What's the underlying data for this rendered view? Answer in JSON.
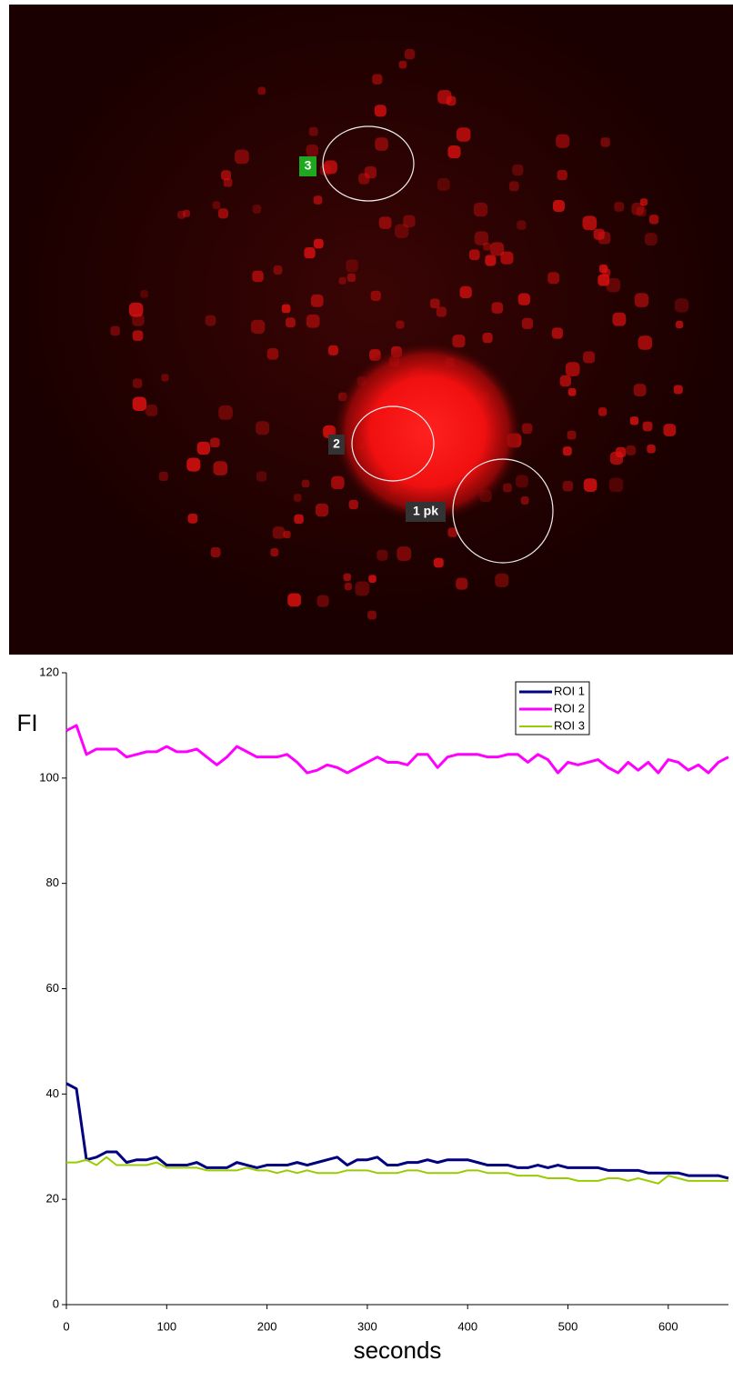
{
  "image_labels": [
    "3",
    "2",
    "1 pk"
  ],
  "chart_data": {
    "type": "line",
    "x_label": "seconds",
    "y_label": "FI",
    "x": [
      0,
      10,
      20,
      30,
      40,
      50,
      60,
      70,
      80,
      90,
      100,
      110,
      120,
      130,
      140,
      150,
      160,
      170,
      180,
      190,
      200,
      210,
      220,
      230,
      240,
      250,
      260,
      270,
      280,
      290,
      300,
      310,
      320,
      330,
      340,
      350,
      360,
      370,
      380,
      390,
      400,
      410,
      420,
      430,
      440,
      450,
      460,
      470,
      480,
      490,
      500,
      510,
      520,
      530,
      540,
      550,
      560,
      570,
      580,
      590,
      600,
      610,
      620,
      630,
      640,
      650,
      660
    ],
    "series": [
      {
        "name": "ROI 1",
        "color": "#000080",
        "values": [
          42,
          41,
          27.5,
          28,
          29,
          29,
          27,
          27.5,
          27.5,
          28,
          26.5,
          26.5,
          26.5,
          27,
          26,
          26,
          26,
          27,
          26.5,
          26,
          26.5,
          26.5,
          26.5,
          27,
          26.5,
          27,
          27.5,
          28,
          26.5,
          27.5,
          27.5,
          28,
          26.5,
          26.5,
          27,
          27,
          27.5,
          27,
          27.5,
          27.5,
          27.5,
          27,
          26.5,
          26.5,
          26.5,
          26,
          26,
          26.5,
          26,
          26.5,
          26,
          26,
          26,
          26,
          25.5,
          25.5,
          25.5,
          25.5,
          25,
          25,
          25,
          25,
          24.5,
          24.5,
          24.5,
          24.5,
          24
        ]
      },
      {
        "name": "ROI 2",
        "color": "#ff00ff",
        "values": [
          109,
          110,
          104.5,
          105.5,
          105.5,
          105.5,
          104,
          104.5,
          105,
          105,
          106,
          105,
          105,
          105.5,
          104,
          102.5,
          104,
          106,
          105,
          104,
          104,
          104,
          104.5,
          103,
          101,
          101.5,
          102.5,
          102,
          101,
          102,
          103,
          104,
          103,
          103,
          102.5,
          104.5,
          104.5,
          102,
          104,
          104.5,
          104.5,
          104.5,
          104,
          104,
          104.5,
          104.5,
          103,
          104.5,
          103.5,
          101,
          103,
          102.5,
          103,
          103.5,
          102,
          101,
          103,
          101.5,
          103,
          101,
          103.5,
          103,
          101.5,
          102.5,
          101,
          103,
          104
        ]
      },
      {
        "name": "ROI 3",
        "color": "#99cc00",
        "values": [
          27,
          27,
          27.5,
          26.5,
          28,
          26.5,
          26.5,
          26.5,
          26.5,
          27,
          26,
          26,
          26,
          26,
          25.5,
          25.5,
          25.5,
          25.5,
          26,
          25.5,
          25.5,
          25,
          25.5,
          25,
          25.5,
          25,
          25,
          25,
          25.5,
          25.5,
          25.5,
          25,
          25,
          25,
          25.5,
          25.5,
          25,
          25,
          25,
          25,
          25.5,
          25.5,
          25,
          25,
          25,
          24.5,
          24.5,
          24.5,
          24,
          24,
          24,
          23.5,
          23.5,
          23.5,
          24,
          24,
          23.5,
          24,
          23.5,
          23,
          24.5,
          24,
          23.5,
          23.5,
          23.5,
          23.5,
          23.5
        ]
      }
    ],
    "xlim": [
      0,
      660
    ],
    "ylim": [
      0,
      120
    ],
    "xticks": [
      0,
      100,
      200,
      300,
      400,
      500,
      600
    ],
    "yticks": [
      0,
      20,
      40,
      60,
      80,
      100,
      120
    ],
    "grid": false
  }
}
